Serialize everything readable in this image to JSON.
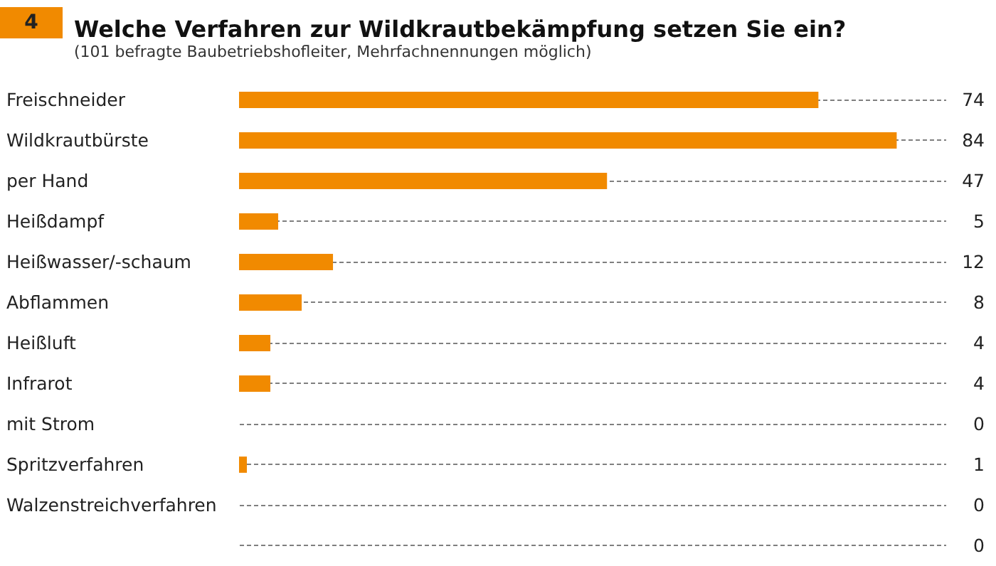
{
  "chart_data": {
    "type": "bar",
    "orientation": "horizontal",
    "title": "Welche Verfahren zur Wildkrautbekämpfung setzen Sie ein?",
    "subtitle": "(101 befragte Baubetriebshofleiter, Mehrfachnennungen möglich)",
    "annotations": [
      "4"
    ],
    "categories": [
      "Freischneider",
      "Wildkrautbürste",
      "per Hand",
      "Heißdampf",
      "Heißwasser/-schaum",
      "Abflammen",
      "Heißluft",
      "Infrarot",
      "mit Strom",
      "Spritzverfahren",
      "Walzenstreichverfahren",
      null
    ],
    "values": [
      74,
      84,
      47,
      5,
      12,
      8,
      4,
      4,
      0,
      1,
      0,
      0
    ],
    "color": "#f18a00",
    "data_labels": true,
    "grid": "y"
  }
}
